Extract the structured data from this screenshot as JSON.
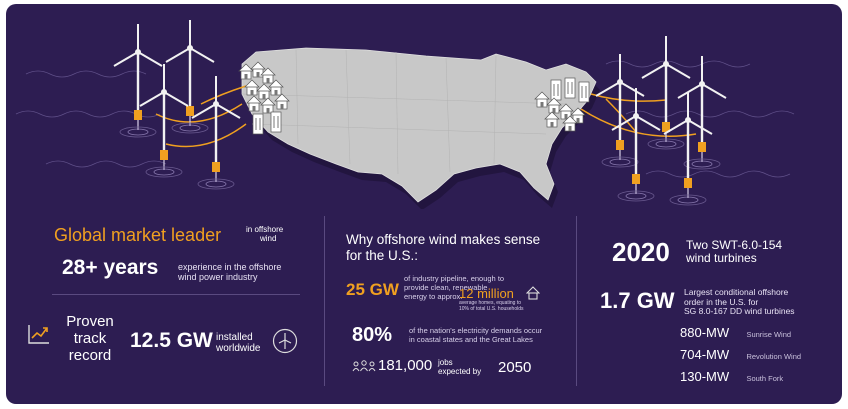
{
  "colors": {
    "background": "#2d1d52",
    "accent": "#f0a020",
    "map": "#c8c8c8"
  },
  "left": {
    "title": "Global market leader",
    "title_suffix": [
      "in offshore",
      "wind"
    ],
    "years_value": "28+ years",
    "years_desc": [
      "experience in the offshore",
      "wind power industry"
    ],
    "track_label": [
      "Proven",
      "track",
      "record"
    ],
    "installed_value": "12.5 GW",
    "installed_desc": [
      "installed",
      "worldwide"
    ],
    "icons": [
      "chart-trend-icon",
      "wind-badge-icon"
    ]
  },
  "middle": {
    "title": [
      "Why offshore wind makes sense",
      "for the U.S.:"
    ],
    "pipeline_value": "25 GW",
    "pipeline_desc": [
      "of industry pipeline, enough to",
      "provide clean, renewable",
      "energy to approx."
    ],
    "homes_value": "12 million",
    "homes_desc": [
      "average homes, equating to",
      "10% of total U.S. households"
    ],
    "demand_value": "80%",
    "demand_desc": [
      "of the nation's electricity demands occur",
      "in coastal states and the Great Lakes"
    ],
    "jobs_value": "181,000",
    "jobs_desc": [
      "jobs",
      "expected by"
    ],
    "jobs_year": "2050",
    "icons": [
      "house-icon",
      "people-icon"
    ]
  },
  "right": {
    "year": "2020",
    "year_desc": [
      "Two SWT-6.0-154",
      "wind turbines"
    ],
    "order_value": "1.7 GW",
    "order_desc": [
      "Largest conditional offshore",
      "order in the U.S. for",
      "SG 8.0-167 DD wind turbines"
    ],
    "projects": [
      {
        "value": "880-MW",
        "name": "Sunrise Wind"
      },
      {
        "value": "704-MW",
        "name": "Revolution Wind"
      },
      {
        "value": "130-MW",
        "name": "South Fork"
      }
    ]
  }
}
